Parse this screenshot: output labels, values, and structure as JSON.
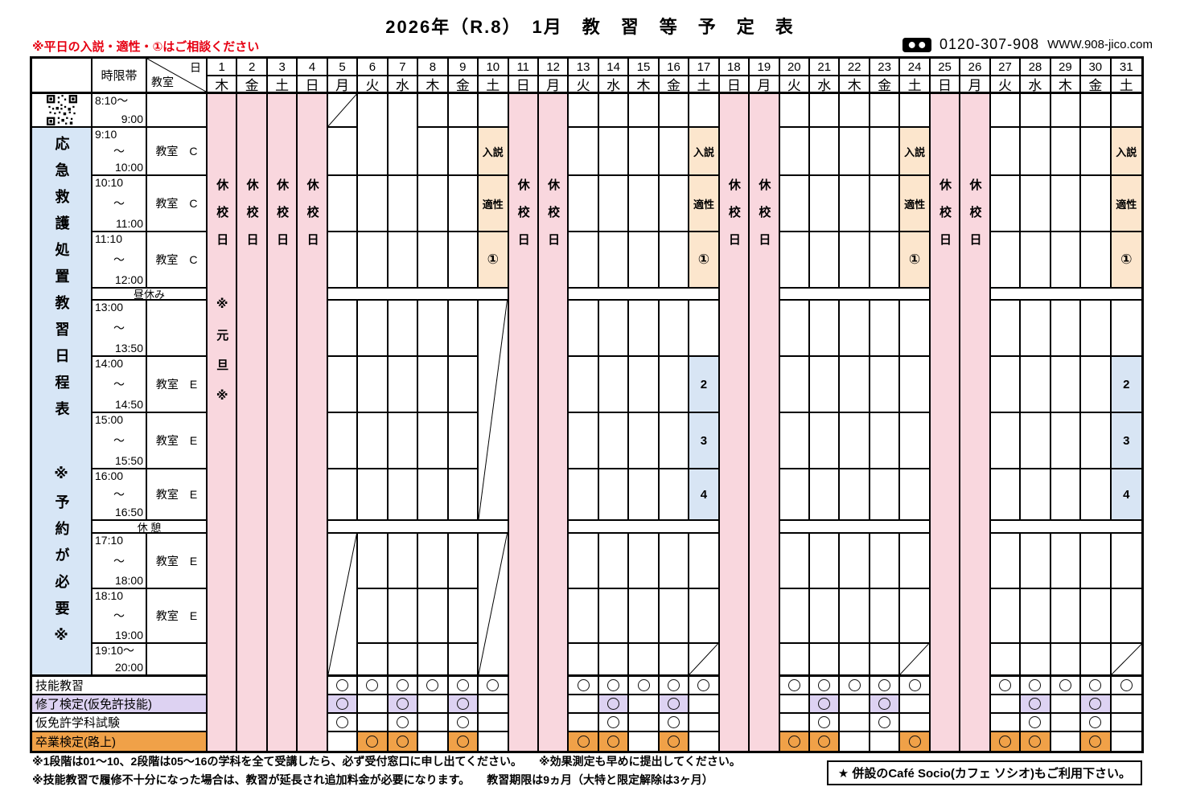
{
  "colors": {
    "band_blue": "#DBE8F4",
    "sidebar_blue": "#D7E6F6",
    "closed_pink": "#F9D7DE",
    "mark_peach": "#FCE6CD",
    "stage_blue": "#D8E5F4",
    "kentei_lavender": "#DDD2F2",
    "sotsugyo_orange": "#F0A148",
    "note_red": "#E60012"
  },
  "header": {
    "title": "2026年（R.8）　1月　教　習　等　予　定　表",
    "red_note": "※平日の入説・適性・①はご相談ください",
    "phone": "0120-307-908",
    "website": "WWW.908-jico.com"
  },
  "corner": {
    "time_header": "時限帯",
    "diag_top": "日",
    "diag_bottom": "教室"
  },
  "sidebar": {
    "line1": "応急救護処置教習日程表",
    "line2": "※予約が必要※"
  },
  "labels": {
    "closed": "休校日",
    "new_year": "※元旦※",
    "lunch": "昼休み",
    "break": "休 憩",
    "tilde": "～"
  },
  "days": [
    {
      "n": 1,
      "w": "木"
    },
    {
      "n": 2,
      "w": "金"
    },
    {
      "n": 3,
      "w": "土"
    },
    {
      "n": 4,
      "w": "日"
    },
    {
      "n": 5,
      "w": "月"
    },
    {
      "n": 6,
      "w": "火"
    },
    {
      "n": 7,
      "w": "水"
    },
    {
      "n": 8,
      "w": "木"
    },
    {
      "n": 9,
      "w": "金"
    },
    {
      "n": 10,
      "w": "土"
    },
    {
      "n": 11,
      "w": "日"
    },
    {
      "n": 12,
      "w": "月"
    },
    {
      "n": 13,
      "w": "火"
    },
    {
      "n": 14,
      "w": "水"
    },
    {
      "n": 15,
      "w": "木"
    },
    {
      "n": 16,
      "w": "金"
    },
    {
      "n": 17,
      "w": "土"
    },
    {
      "n": 18,
      "w": "日"
    },
    {
      "n": 19,
      "w": "月"
    },
    {
      "n": 20,
      "w": "火"
    },
    {
      "n": 21,
      "w": "水"
    },
    {
      "n": 22,
      "w": "木"
    },
    {
      "n": 23,
      "w": "金"
    },
    {
      "n": 24,
      "w": "土"
    },
    {
      "n": 25,
      "w": "日"
    },
    {
      "n": 26,
      "w": "月"
    },
    {
      "n": 27,
      "w": "火"
    },
    {
      "n": 28,
      "w": "水"
    },
    {
      "n": 29,
      "w": "木"
    },
    {
      "n": 30,
      "w": "金"
    },
    {
      "n": 31,
      "w": "土"
    }
  ],
  "time_rows": [
    {
      "key": "0810",
      "start": "8:10～",
      "end": "9:00",
      "room": "",
      "kind": "short"
    },
    {
      "key": "0910",
      "start": "9:10",
      "end": "10:00",
      "room": "教室　C",
      "mark": "入説"
    },
    {
      "key": "1010",
      "start": "10:10",
      "end": "11:00",
      "room": "教室　C",
      "mark": "適性"
    },
    {
      "key": "1110",
      "start": "11:10",
      "end": "12:00",
      "room": "教室　C",
      "mark": "①"
    },
    {
      "key": "lunch",
      "kind": "band",
      "label": "昼休み"
    },
    {
      "key": "1300",
      "start": "13:00",
      "end": "13:50",
      "room": ""
    },
    {
      "key": "1400",
      "start": "14:00",
      "end": "14:50",
      "room": "教室　E",
      "stage": "2"
    },
    {
      "key": "1500",
      "start": "15:00",
      "end": "15:50",
      "room": "教室　E",
      "stage": "3"
    },
    {
      "key": "1600",
      "start": "16:00",
      "end": "16:50",
      "room": "教室　E",
      "stage": "4"
    },
    {
      "key": "break",
      "kind": "band",
      "label": "休 憩"
    },
    {
      "key": "1710",
      "start": "17:10",
      "end": "18:00",
      "room": "教室　E"
    },
    {
      "key": "1810",
      "start": "18:10",
      "end": "19:00",
      "room": "教室　E"
    },
    {
      "key": "1910",
      "start": "19:10～",
      "end": "20:00",
      "room": "",
      "kind": "short"
    }
  ],
  "day_configs": {
    "closed_days": [
      1,
      2,
      3,
      4,
      11,
      12,
      18,
      19,
      25,
      26
    ],
    "new_year_day": 1,
    "entry_mark_days": [
      10,
      17,
      24,
      31
    ],
    "stage_mark_days": [
      17,
      31
    ],
    "merged_morning_days": [
      6,
      7
    ],
    "diagonal_0810_days": [
      5
    ],
    "diagonal_afternoon_days": [
      10
    ],
    "diagonal_evening_days": [
      5,
      10
    ],
    "diagonal_1910_days": [
      17,
      24,
      31
    ]
  },
  "bottom_rows": [
    {
      "key": "ginou",
      "label": "技能教習",
      "style": "plain",
      "circle_days": [
        5,
        6,
        7,
        8,
        9,
        10,
        13,
        14,
        15,
        16,
        17,
        20,
        21,
        22,
        23,
        24,
        27,
        28,
        29,
        30,
        31
      ]
    },
    {
      "key": "shuuryou",
      "label": "修了検定(仮免許技能)",
      "style": "lavender",
      "circle_days": [
        5,
        7,
        9,
        14,
        16,
        21,
        23,
        28,
        30
      ]
    },
    {
      "key": "karimen",
      "label": "仮免許学科試験",
      "style": "plain",
      "circle_days": [
        5,
        7,
        9,
        14,
        16,
        21,
        23,
        28,
        30
      ]
    },
    {
      "key": "sotsugyou",
      "label": "卒業検定(路上)",
      "style": "orange",
      "circle_days": [
        6,
        7,
        9,
        13,
        14,
        16,
        20,
        21,
        24,
        27,
        28,
        30
      ]
    }
  ],
  "footer": {
    "note1": "※1段階は01～10、2段階は05～16の学科を全て受講したら、必ず受付窓口に申し出てください。　　※効果測定も早めに提出してください。",
    "note2": "※技能教習で履修不十分になった場合は、教習が延長され追加料金が必要になります。　　教習期限は9ヵ月（大特と限定解除は3ヶ月）",
    "cafe_note": "★ 併設のCafé Socio(カフェ ソシオ)もご利用下さい。"
  }
}
